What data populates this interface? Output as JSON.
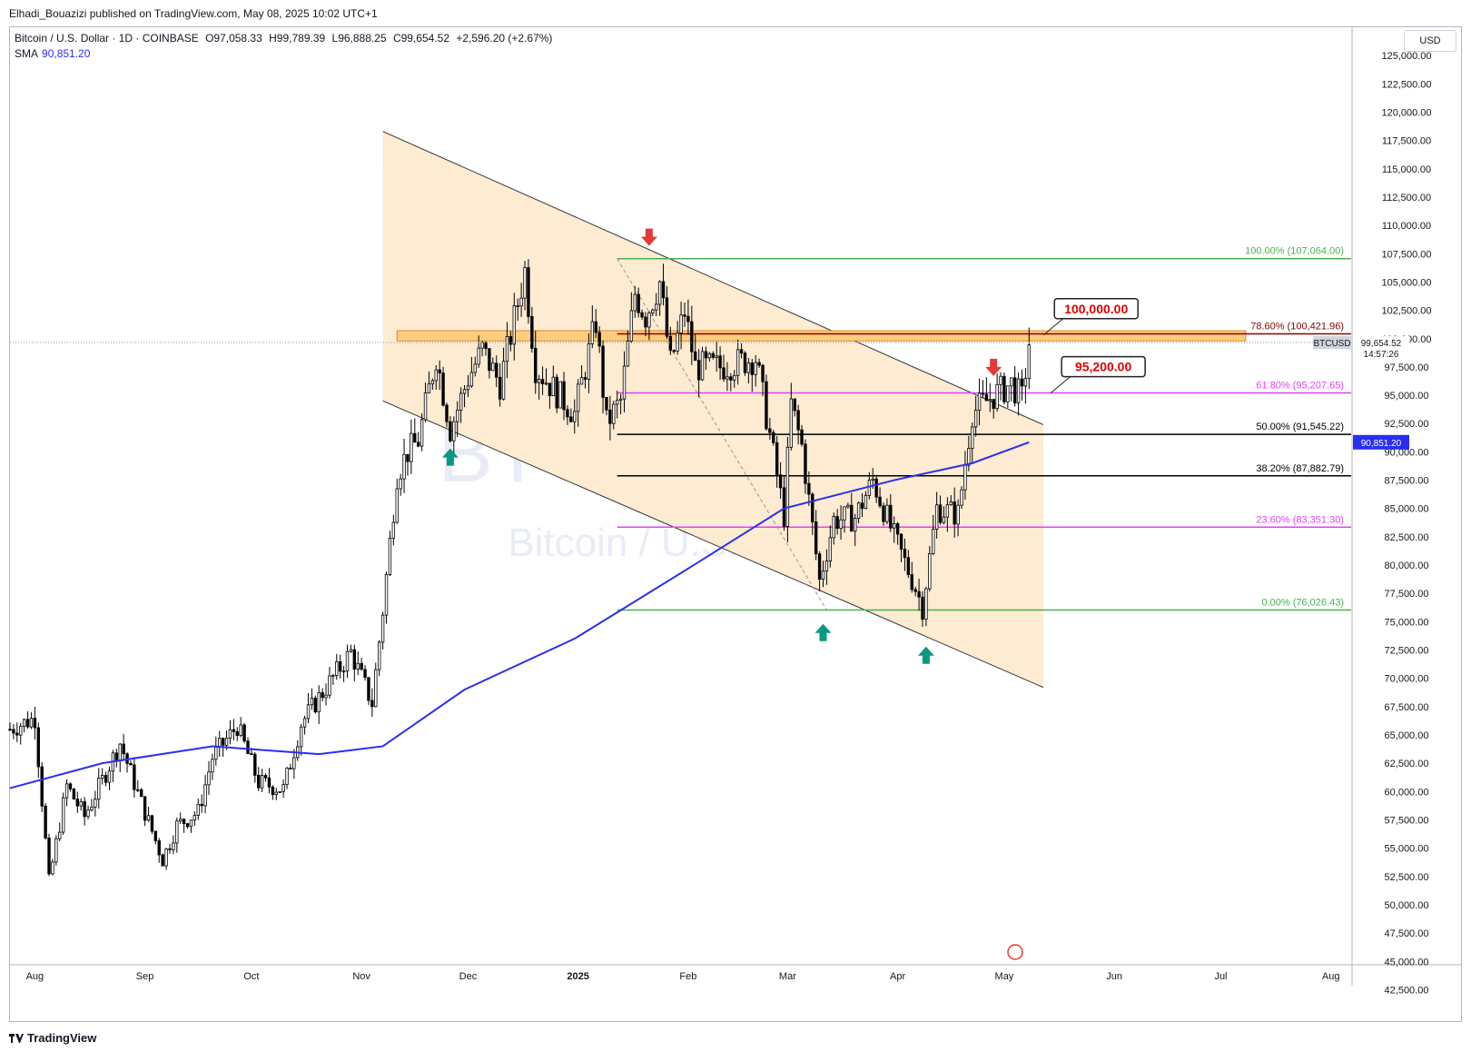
{
  "header": {
    "published": "Elhadi_Bouazizi published on TradingView.com, May 08, 2025 10:02 UTC+1"
  },
  "legend": {
    "symbol": "Bitcoin / U.S. Dollar · 1D · COINBASE",
    "open": "O97,058.33",
    "high": "H99,789.39",
    "low": "L96,888.25",
    "close": "C99,654.52",
    "change": "+2,596.20 (+2.67%)",
    "sma_label": "SMA",
    "sma_value": "90,851.20"
  },
  "currency": "USD",
  "watermark": {
    "ticker": "BTCUSD, 1D",
    "name": "Bitcoin / U.S. Dollar"
  },
  "footer": {
    "brand": "TradingView"
  },
  "price_tag": {
    "symbol": "BTCUSD",
    "price": "99,654.52",
    "countdown": "14:57:26"
  },
  "sma_tag": "90,851.20",
  "colors": {
    "up": "#000000",
    "down": "#000000",
    "sma": "#2a2ef0",
    "channel_fill": "#fdebd2",
    "fib_green": "#4caf50",
    "fib_magenta": "#e040fb",
    "fib_red": "#8b0000",
    "arrow_up": "#089981",
    "arrow_down": "#e53935"
  },
  "chart_data": {
    "type": "candlestick",
    "x_axis_labels": [
      "Aug",
      "Sep",
      "Oct",
      "Nov",
      "Dec",
      "2025",
      "Feb",
      "Mar",
      "Apr",
      "May",
      "Jun",
      "Jul",
      "Aug"
    ],
    "y_axis_range": [
      41250,
      127500
    ],
    "y_ticks": [
      42500,
      45000,
      47500,
      50000,
      52500,
      55000,
      57500,
      60000,
      62500,
      65000,
      67500,
      70000,
      72500,
      75000,
      77500,
      80000,
      82500,
      85000,
      87500,
      90000,
      92500,
      95000,
      97500,
      100000,
      102500,
      105000,
      107500,
      110000,
      112500,
      115000,
      117500,
      120000,
      122500,
      125000
    ],
    "y_tick_labels": [
      "42,500.00",
      "45,000.00",
      "47,500.00",
      "50,000.00",
      "52,500.00",
      "55,000.00",
      "57,500.00",
      "60,000.00",
      "62,500.00",
      "65,000.00",
      "67,500.00",
      "70,000.00",
      "72,500.00",
      "75,000.00",
      "77,500.00",
      "80,000.00",
      "82,500.00",
      "85,000.00",
      "87,500.00",
      "90,000.00",
      "92,500.00",
      "95,000.00",
      "97,500.00",
      "100,000.00",
      "102,500.00",
      "105,000.00",
      "107,500.00",
      "110,000.00",
      "112,500.00",
      "115,000.00",
      "117,500.00",
      "120,000.00",
      "122,500.00",
      "125,000.00"
    ],
    "price_path": [
      [
        "2024-07-25",
        65500
      ],
      [
        "2024-08-01",
        66500
      ],
      [
        "2024-08-05",
        52000
      ],
      [
        "2024-08-10",
        60500
      ],
      [
        "2024-08-15",
        57800
      ],
      [
        "2024-08-20",
        61000
      ],
      [
        "2024-08-25",
        64300
      ],
      [
        "2024-08-31",
        59000
      ],
      [
        "2024-09-06",
        54000
      ],
      [
        "2024-09-10",
        57000
      ],
      [
        "2024-09-16",
        58200
      ],
      [
        "2024-09-20",
        63000
      ],
      [
        "2024-09-27",
        65800
      ],
      [
        "2024-10-03",
        60800
      ],
      [
        "2024-10-10",
        60200
      ],
      [
        "2024-10-15",
        66000
      ],
      [
        "2024-10-20",
        68300
      ],
      [
        "2024-10-29",
        72300
      ],
      [
        "2024-11-04",
        67800
      ],
      [
        "2024-11-07",
        76000
      ],
      [
        "2024-11-11",
        88000
      ],
      [
        "2024-11-14",
        90000
      ],
      [
        "2024-11-17",
        91000
      ],
      [
        "2024-11-22",
        98500
      ],
      [
        "2024-11-26",
        92000
      ],
      [
        "2024-12-01",
        96500
      ],
      [
        "2024-12-05",
        99000
      ],
      [
        "2024-12-10",
        96000
      ],
      [
        "2024-12-17",
        106000
      ],
      [
        "2024-12-20",
        97500
      ],
      [
        "2024-12-26",
        95200
      ],
      [
        "2024-12-31",
        93400
      ],
      [
        "2025-01-06",
        101500
      ],
      [
        "2025-01-09",
        92500
      ],
      [
        "2025-01-13",
        94500
      ],
      [
        "2025-01-17",
        104000
      ],
      [
        "2025-01-20",
        102000
      ],
      [
        "2025-01-24",
        105000
      ],
      [
        "2025-01-27",
        97800
      ],
      [
        "2025-01-31",
        102400
      ],
      [
        "2025-02-03",
        97500
      ],
      [
        "2025-02-10",
        97500
      ],
      [
        "2025-02-20",
        98300
      ],
      [
        "2025-02-24",
        91500
      ],
      [
        "2025-02-28",
        84400
      ],
      [
        "2025-03-02",
        94200
      ],
      [
        "2025-03-05",
        90500
      ],
      [
        "2025-03-10",
        78600
      ],
      [
        "2025-03-14",
        84000
      ],
      [
        "2025-03-20",
        84200
      ],
      [
        "2025-03-25",
        87500
      ],
      [
        "2025-03-31",
        82500
      ],
      [
        "2025-04-06",
        78000
      ],
      [
        "2025-04-08",
        76300
      ],
      [
        "2025-04-12",
        85000
      ],
      [
        "2025-04-18",
        84500
      ],
      [
        "2025-04-22",
        93500
      ],
      [
        "2025-04-28",
        95000
      ],
      [
        "2025-05-03",
        96000
      ],
      [
        "2025-05-06",
        94700
      ],
      [
        "2025-05-08",
        99654.52
      ]
    ],
    "sma_path": [
      [
        "2024-07-25",
        60300
      ],
      [
        "2024-08-20",
        62500
      ],
      [
        "2024-09-20",
        64000
      ],
      [
        "2024-10-20",
        63300
      ],
      [
        "2024-11-07",
        64000
      ],
      [
        "2024-11-30",
        69000
      ],
      [
        "2024-12-31",
        73500
      ],
      [
        "2025-01-31",
        79500
      ],
      [
        "2025-02-28",
        85000
      ],
      [
        "2025-03-31",
        87500
      ],
      [
        "2025-04-22",
        89000
      ],
      [
        "2025-05-08",
        90851.2
      ]
    ],
    "last_price": 99654.52,
    "sma_value": 90851.2,
    "fibonacci": [
      {
        "label": "100.00% (107,064.00)",
        "price": 107064.0,
        "color": "#4caf50"
      },
      {
        "label": "78.60% (100,421.96)",
        "price": 100421.96,
        "color": "#8b0000"
      },
      {
        "label": "61.80% (95,207.65)",
        "price": 95207.65,
        "color": "#e040fb"
      },
      {
        "label": "50.00% (91,545.22)",
        "price": 91545.22,
        "color": "#000000"
      },
      {
        "label": "38.20% (87,882.79)",
        "price": 87882.79,
        "color": "#000000"
      },
      {
        "label": "23.60% (83,351.30)",
        "price": 83351.3,
        "color": "#e040fb"
      },
      {
        "label": "0.00% (76,026.43)",
        "price": 76026.43,
        "color": "#4caf50"
      }
    ],
    "fib_start": "2025-01-12",
    "fib_end": "2025-08-03",
    "resistance_zone": {
      "from": "2024-11-11",
      "to": "2025-07-08",
      "low": 99800,
      "high": 100700
    },
    "channel": {
      "upper": [
        [
          "2024-11-07",
          118300
        ],
        [
          "2025-05-12",
          92400
        ]
      ],
      "lower": [
        [
          "2024-11-07",
          94500
        ],
        [
          "2025-05-12",
          69200
        ]
      ]
    },
    "callouts": [
      {
        "text": "100,000.00",
        "date": "2025-05-09",
        "price": 100000
      },
      {
        "text": "95,200.00",
        "date": "2025-05-10",
        "price": 95200
      }
    ],
    "arrows_up": [
      {
        "date": "2024-11-26",
        "price": 89500
      },
      {
        "date": "2025-03-11",
        "price": 74000
      },
      {
        "date": "2025-04-09",
        "price": 72000
      }
    ],
    "arrows_down": [
      {
        "date": "2025-01-21",
        "price": 109000
      },
      {
        "date": "2025-04-28",
        "price": 97500
      }
    ]
  }
}
